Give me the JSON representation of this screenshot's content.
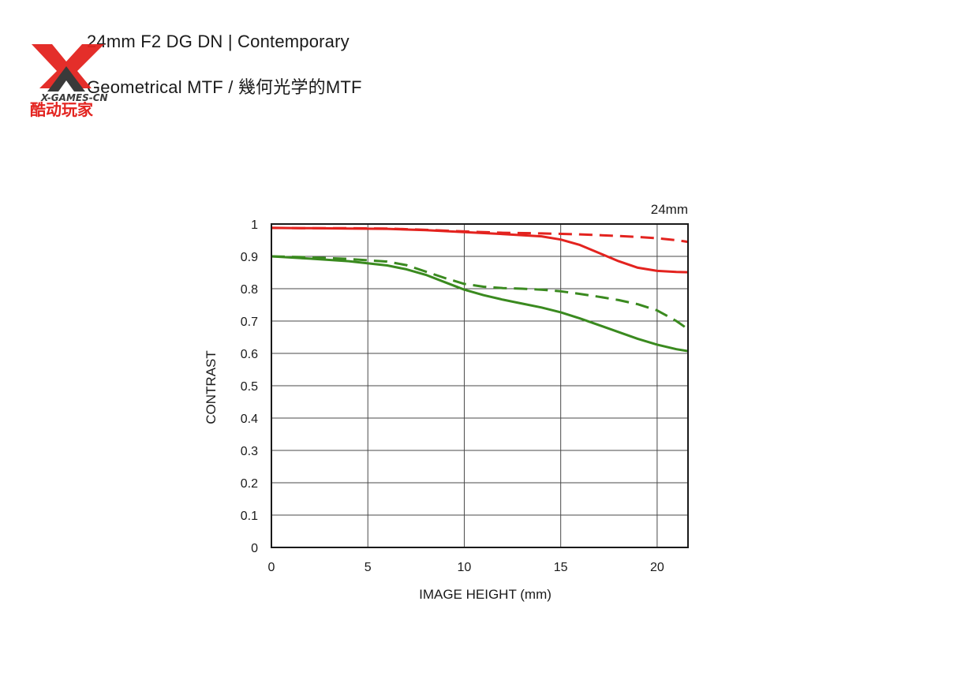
{
  "header": {
    "title": "24mm F2 DG DN | Contemporary",
    "subtitle": "Geometrical MTF / 幾何光学的MTF"
  },
  "logo": {
    "text_top": "X-GAMES-CN",
    "text_bottom": "酷动玩家"
  },
  "colors": {
    "red": "#e3231f",
    "green": "#3a8a1f",
    "grid": "#4a4a4a"
  },
  "chart_data": {
    "type": "line",
    "title": "",
    "annotation": "24mm",
    "xlabel": "IMAGE HEIGHT (mm)",
    "ylabel": "CONTRAST",
    "xlim": [
      0,
      21.6
    ],
    "ylim": [
      0,
      1
    ],
    "xticks": [
      0,
      5,
      10,
      15,
      20
    ],
    "yticks": [
      0,
      0.1,
      0.2,
      0.3,
      0.4,
      0.5,
      0.6,
      0.7,
      0.8,
      0.9,
      1
    ],
    "ytick_labels": [
      "0",
      "0.1",
      "0.2",
      "0.3",
      "0.4",
      "0.5",
      "0.6",
      "0.7",
      "0.8",
      "0.9",
      "1"
    ],
    "grid": true,
    "legend": "none",
    "series": [
      {
        "color": "red",
        "style": "solid",
        "x": [
          0,
          2,
          4,
          6,
          8,
          10,
          12,
          14,
          15,
          16,
          17,
          18,
          19,
          20,
          21,
          21.6
        ],
        "y": [
          0.988,
          0.987,
          0.986,
          0.985,
          0.981,
          0.975,
          0.969,
          0.962,
          0.952,
          0.935,
          0.91,
          0.885,
          0.865,
          0.855,
          0.852,
          0.851
        ]
      },
      {
        "color": "red",
        "style": "dashed",
        "x": [
          0,
          2,
          4,
          6,
          8,
          10,
          12,
          14,
          16,
          18,
          19,
          20,
          21,
          21.6
        ],
        "y": [
          0.988,
          0.987,
          0.987,
          0.986,
          0.982,
          0.977,
          0.973,
          0.971,
          0.968,
          0.963,
          0.96,
          0.956,
          0.95,
          0.945
        ]
      },
      {
        "color": "green",
        "style": "solid",
        "x": [
          0,
          2,
          4,
          6,
          7,
          8,
          9,
          10,
          11,
          12,
          13,
          14,
          15,
          16,
          17,
          18,
          19,
          20,
          21,
          21.6
        ],
        "y": [
          0.9,
          0.893,
          0.885,
          0.872,
          0.86,
          0.843,
          0.82,
          0.797,
          0.78,
          0.766,
          0.754,
          0.742,
          0.727,
          0.708,
          0.687,
          0.666,
          0.645,
          0.627,
          0.613,
          0.607
        ]
      },
      {
        "color": "green",
        "style": "dashed",
        "x": [
          0,
          2,
          4,
          6,
          7,
          8,
          9,
          10,
          11,
          12,
          13,
          14,
          15,
          16,
          17,
          18,
          19,
          20,
          21,
          21.6
        ],
        "y": [
          0.9,
          0.897,
          0.892,
          0.884,
          0.873,
          0.853,
          0.833,
          0.815,
          0.806,
          0.802,
          0.8,
          0.797,
          0.792,
          0.784,
          0.775,
          0.765,
          0.752,
          0.733,
          0.7,
          0.675
        ]
      }
    ]
  }
}
